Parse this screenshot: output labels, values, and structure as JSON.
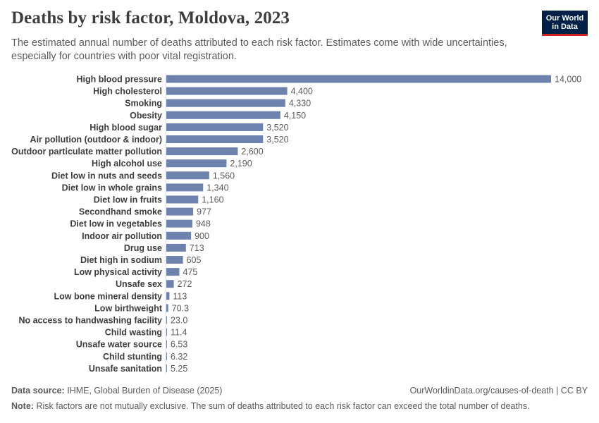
{
  "header": {
    "title": "Deaths by risk factor, Moldova, 2023",
    "subtitle": "The estimated annual number of deaths attributed to each risk factor. Estimates come with wide uncertainties, especially for countries with poor vital registration."
  },
  "logo": {
    "line1": "Our World",
    "line2": "in Data"
  },
  "footer": {
    "source_label": "Data source:",
    "source_text": "IHME, Global Burden of Disease (2025)",
    "url_text": "OurWorldinData.org/causes-of-death | CC BY",
    "note_label": "Note:",
    "note_text": "Risk factors are not mutually exclusive. The sum of deaths attributed to each risk factor can exceed the total number of deaths."
  },
  "colors": {
    "bar": "#6d83ad",
    "axis": "#dddddd",
    "label": "#3d3d3d",
    "value": "#5b5b5b",
    "brand": "#002147",
    "brand_accent": "#ce261e"
  },
  "chart_data": {
    "type": "bar",
    "orientation": "horizontal",
    "categories": [
      "High blood pressure",
      "High cholesterol",
      "Smoking",
      "Obesity",
      "High blood sugar",
      "Air pollution (outdoor & indoor)",
      "Outdoor particulate matter pollution",
      "High alcohol use",
      "Diet low in nuts and seeds",
      "Diet low in whole grains",
      "Diet low in fruits",
      "Secondhand smoke",
      "Diet low in vegetables",
      "Indoor air pollution",
      "Drug use",
      "Diet high in sodium",
      "Low physical activity",
      "Unsafe sex",
      "Low bone mineral density",
      "Low birthweight",
      "No access to handwashing facility",
      "Child wasting",
      "Unsafe water source",
      "Child stunting",
      "Unsafe sanitation"
    ],
    "values": [
      14000,
      4400,
      4330,
      4150,
      3520,
      3520,
      2600,
      2190,
      1560,
      1340,
      1160,
      977,
      948,
      900,
      713,
      605,
      475,
      272,
      113,
      70.3,
      23.0,
      11.4,
      6.53,
      6.32,
      5.25
    ],
    "value_labels": [
      "14,000",
      "4,400",
      "4,330",
      "4,150",
      "3,520",
      "3,520",
      "2,600",
      "2,190",
      "1,560",
      "1,340",
      "1,160",
      "977",
      "948",
      "900",
      "713",
      "605",
      "475",
      "272",
      "113",
      "70.3",
      "23.0",
      "11.4",
      "6.53",
      "6.32",
      "5.25"
    ],
    "xlim": [
      0,
      14000
    ]
  }
}
